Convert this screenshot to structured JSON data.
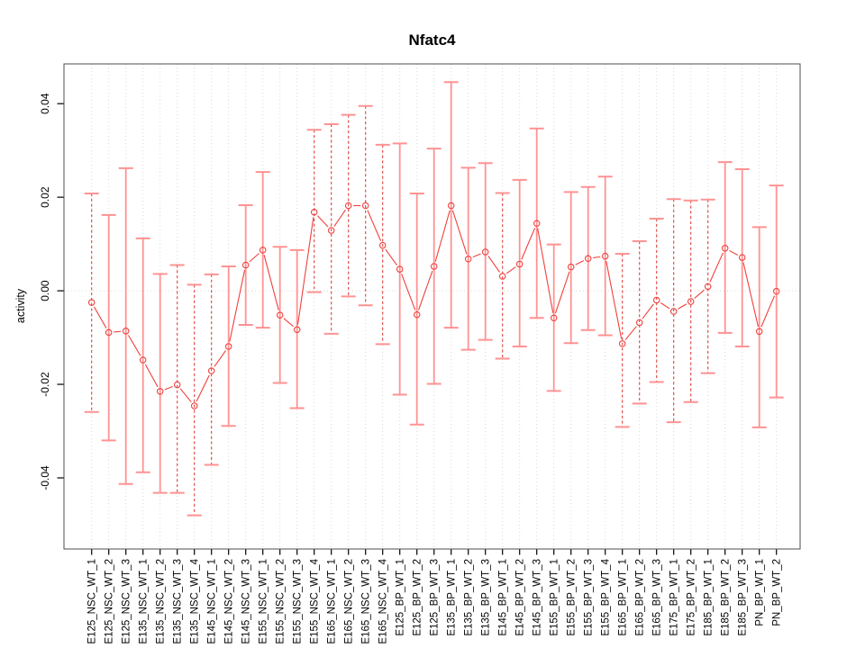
{
  "chart_data": {
    "type": "errorbar-line",
    "title": "Nfatc4",
    "xlabel": "",
    "ylabel": "activity",
    "ylim": [
      -0.0552,
      0.0485
    ],
    "yticks": [
      "-0.04",
      "-0.02",
      "0.00",
      "0.02",
      "0.04"
    ],
    "ytick_values": [
      -0.04,
      -0.02,
      0.0,
      0.02,
      0.04
    ],
    "grid": "vertical dotted gridline per category; dotted horizontal reference line at y=0",
    "legend": "none",
    "x_tick_label_rotation_deg": 90,
    "categories": [
      "E125_NSC_WT_1",
      "E125_NSC_WT_2",
      "E125_NSC_WT_3",
      "E135_NSC_WT_1",
      "E135_NSC_WT_2",
      "E135_NSC_WT_3",
      "E135_NSC_WT_4",
      "E145_NSC_WT_1",
      "E145_NSC_WT_2",
      "E145_NSC_WT_3",
      "E155_NSC_WT_1",
      "E155_NSC_WT_2",
      "E155_NSC_WT_3",
      "E155_NSC_WT_4",
      "E165_NSC_WT_1",
      "E165_NSC_WT_2",
      "E165_NSC_WT_3",
      "E165_NSC_WT_4",
      "E125_BP_WT_1",
      "E125_BP_WT_2",
      "E125_BP_WT_3",
      "E135_BP_WT_1",
      "E135_BP_WT_2",
      "E135_BP_WT_3",
      "E145_BP_WT_1",
      "E145_BP_WT_2",
      "E145_BP_WT_3",
      "E155_BP_WT_1",
      "E155_BP_WT_2",
      "E155_BP_WT_3",
      "E155_BP_WT_4",
      "E165_BP_WT_1",
      "E165_BP_WT_2",
      "E165_BP_WT_3",
      "E175_BP_WT_1",
      "E175_BP_WT_2",
      "E185_BP_WT_1",
      "E185_BP_WT_2",
      "E185_BP_WT_3",
      "PN_BP_WT_1",
      "PN_BP_WT_2"
    ],
    "series": [
      {
        "name": "activity",
        "center": [
          -0.0025,
          -0.0089,
          -0.0086,
          -0.0148,
          -0.0215,
          -0.0201,
          -0.0246,
          -0.0171,
          -0.0119,
          0.0055,
          0.0087,
          -0.0052,
          -0.0083,
          0.0168,
          0.0129,
          0.0182,
          0.0182,
          0.0097,
          0.0046,
          -0.0051,
          0.0052,
          0.0182,
          0.0068,
          0.0083,
          0.0031,
          0.0057,
          0.0144,
          -0.0058,
          0.0051,
          0.0069,
          0.0074,
          -0.0113,
          -0.0068,
          -0.002,
          -0.0044,
          -0.0023,
          0.0009,
          0.0091,
          0.0071,
          -0.0087,
          -0.0001
        ],
        "upper": [
          0.0208,
          0.0162,
          0.0262,
          0.0112,
          0.0036,
          0.0055,
          0.0013,
          0.0035,
          0.0052,
          0.0183,
          0.0254,
          0.0094,
          0.0087,
          0.0344,
          0.0356,
          0.0376,
          0.0395,
          0.0312,
          0.0315,
          0.0208,
          0.0304,
          0.0446,
          0.0263,
          0.0273,
          0.0209,
          0.0237,
          0.0347,
          0.0099,
          0.0211,
          0.0222,
          0.0244,
          0.0079,
          0.0106,
          0.0154,
          0.0196,
          0.0193,
          0.0195,
          0.0275,
          0.026,
          0.0136,
          0.0225
        ],
        "lower": [
          -0.0259,
          -0.032,
          -0.0413,
          -0.0388,
          -0.0432,
          -0.0432,
          -0.048,
          -0.0372,
          -0.0289,
          -0.0073,
          -0.0079,
          -0.0197,
          -0.0251,
          -0.0003,
          -0.0092,
          -0.0012,
          -0.0031,
          -0.0114,
          -0.0222,
          -0.0286,
          -0.0199,
          -0.0079,
          -0.0126,
          -0.0105,
          -0.0145,
          -0.0119,
          -0.0058,
          -0.0214,
          -0.0112,
          -0.0084,
          -0.0095,
          -0.0291,
          -0.0241,
          -0.0195,
          -0.0281,
          -0.0238,
          -0.0176,
          -0.009,
          -0.0119,
          -0.0292,
          -0.0228
        ],
        "bar_style": [
          "dashed",
          "solid",
          "solid",
          "solid",
          "solid",
          "dashed",
          "dashed",
          "dashed",
          "solid",
          "solid",
          "solid",
          "solid",
          "solid",
          "dashed",
          "dashed",
          "dashed",
          "dashed",
          "dashed",
          "solid",
          "solid",
          "solid",
          "solid",
          "solid",
          "solid",
          "dashed",
          "solid",
          "solid",
          "solid",
          "solid",
          "solid",
          "solid",
          "dashed",
          "dashed",
          "dashed",
          "dashed",
          "dashed",
          "dashed",
          "solid",
          "solid",
          "solid",
          "solid"
        ]
      }
    ],
    "colors": {
      "point_line": "#ef403c",
      "bar_solid": "#ff9292",
      "bar_dashed": "#e2403b",
      "grid": "#d9d9d9",
      "box": "#4d4d4d",
      "text": "#000000",
      "background": "#ffffff"
    }
  }
}
